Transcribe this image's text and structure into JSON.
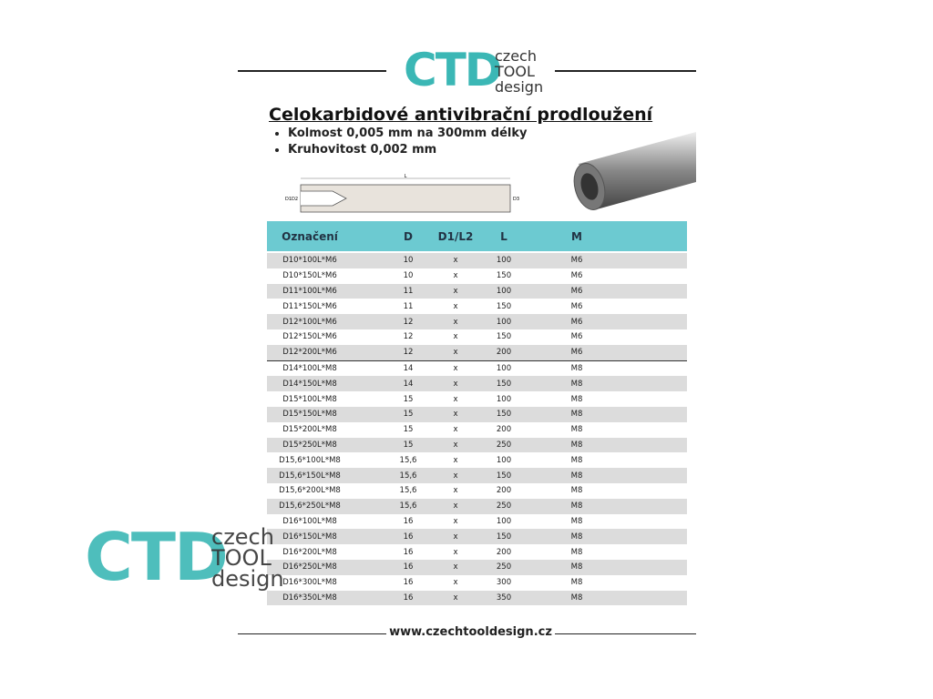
{
  "logo": {
    "mark": "CTD",
    "line1": "czech",
    "line2": "TOOL",
    "line3": "design"
  },
  "title": "Celokarbidové antivibrační prodloužení",
  "bullets": [
    "Kolmost 0,005 mm na 300mm délky",
    "Kruhovitost 0,002 mm"
  ],
  "drawing_labels": [
    "L",
    "D1",
    "D2",
    "D3"
  ],
  "table": {
    "header": [
      "Označení",
      "D",
      "D1/L2",
      "L",
      "M"
    ],
    "rows": [
      [
        "D10*100L*M6",
        "10",
        "x",
        "100",
        "M6"
      ],
      [
        "D10*150L*M6",
        "10",
        "x",
        "150",
        "M6"
      ],
      [
        "D11*100L*M6",
        "11",
        "x",
        "100",
        "M6"
      ],
      [
        "D11*150L*M6",
        "11",
        "x",
        "150",
        "M6"
      ],
      [
        "D12*100L*M6",
        "12",
        "x",
        "100",
        "M6"
      ],
      [
        "D12*150L*M6",
        "12",
        "x",
        "150",
        "M6"
      ],
      [
        "D12*200L*M6",
        "12",
        "x",
        "200",
        "M6"
      ],
      [
        "D14*100L*M8",
        "14",
        "x",
        "100",
        "M8"
      ],
      [
        "D14*150L*M8",
        "14",
        "x",
        "150",
        "M8"
      ],
      [
        "D15*100L*M8",
        "15",
        "x",
        "100",
        "M8"
      ],
      [
        "D15*150L*M8",
        "15",
        "x",
        "150",
        "M8"
      ],
      [
        "D15*200L*M8",
        "15",
        "x",
        "200",
        "M8"
      ],
      [
        "D15*250L*M8",
        "15",
        "x",
        "250",
        "M8"
      ],
      [
        "D15,6*100L*M8",
        "15,6",
        "x",
        "100",
        "M8"
      ],
      [
        "D15,6*150L*M8",
        "15,6",
        "x",
        "150",
        "M8"
      ],
      [
        "D15,6*200L*M8",
        "15,6",
        "x",
        "200",
        "M8"
      ],
      [
        "D15,6*250L*M8",
        "15,6",
        "x",
        "250",
        "M8"
      ],
      [
        "D16*100L*M8",
        "16",
        "x",
        "100",
        "M8"
      ],
      [
        "D16*150L*M8",
        "16",
        "x",
        "150",
        "M8"
      ],
      [
        "D16*200L*M8",
        "16",
        "x",
        "200",
        "M8"
      ],
      [
        "D16*250L*M8",
        "16",
        "x",
        "250",
        "M8"
      ],
      [
        "D16*300L*M8",
        "16",
        "x",
        "300",
        "M8"
      ],
      [
        "D16*350L*M8",
        "16",
        "x",
        "350",
        "M8"
      ]
    ]
  },
  "footer": "www.czechtooldesign.cz"
}
